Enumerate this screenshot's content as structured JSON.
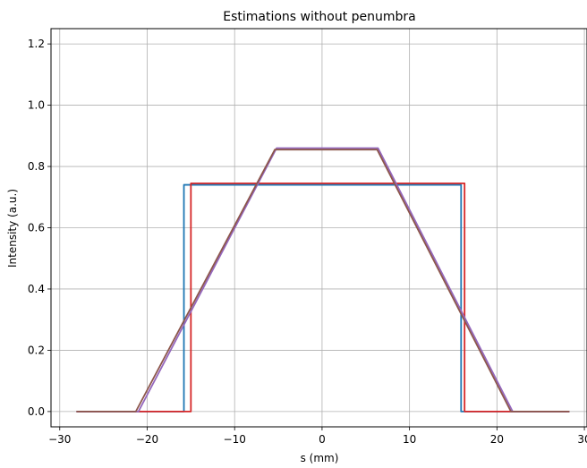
{
  "chart_data": {
    "type": "line",
    "title": "Estimations without penumbra",
    "xlabel": "s (mm)",
    "ylabel": "Intensity (a.u.)",
    "xlim": [
      -31,
      30.3
    ],
    "ylim": [
      -0.05,
      1.25
    ],
    "xticks": [
      -30,
      -20,
      -10,
      0,
      10,
      20,
      30
    ],
    "yticks": [
      0.0,
      0.2,
      0.4,
      0.6,
      0.8,
      1.0,
      1.2
    ],
    "grid": true,
    "series": [
      {
        "color": "#1f77b4",
        "x": [
          -28.0,
          -15.8,
          -15.8,
          15.9,
          15.9,
          28.2
        ],
        "y": [
          0.0,
          0.0,
          0.74,
          0.74,
          0.0,
          0.0
        ]
      },
      {
        "color": "#d62728",
        "x": [
          -28.0,
          -15.0,
          -15.0,
          16.3,
          16.3,
          28.2
        ],
        "y": [
          0.0,
          0.0,
          0.745,
          0.745,
          0.0,
          0.0
        ]
      },
      {
        "color": "#9467bd",
        "x": [
          -28.0,
          -21.0,
          -5.2,
          6.4,
          21.8,
          28.2
        ],
        "y": [
          0.0,
          0.0,
          0.86,
          0.86,
          0.0,
          0.0
        ]
      },
      {
        "color": "#8c564b",
        "x": [
          -28.0,
          -21.3,
          -5.4,
          6.3,
          21.6,
          28.2
        ],
        "y": [
          0.0,
          0.0,
          0.855,
          0.855,
          0.0,
          0.0
        ]
      }
    ]
  }
}
